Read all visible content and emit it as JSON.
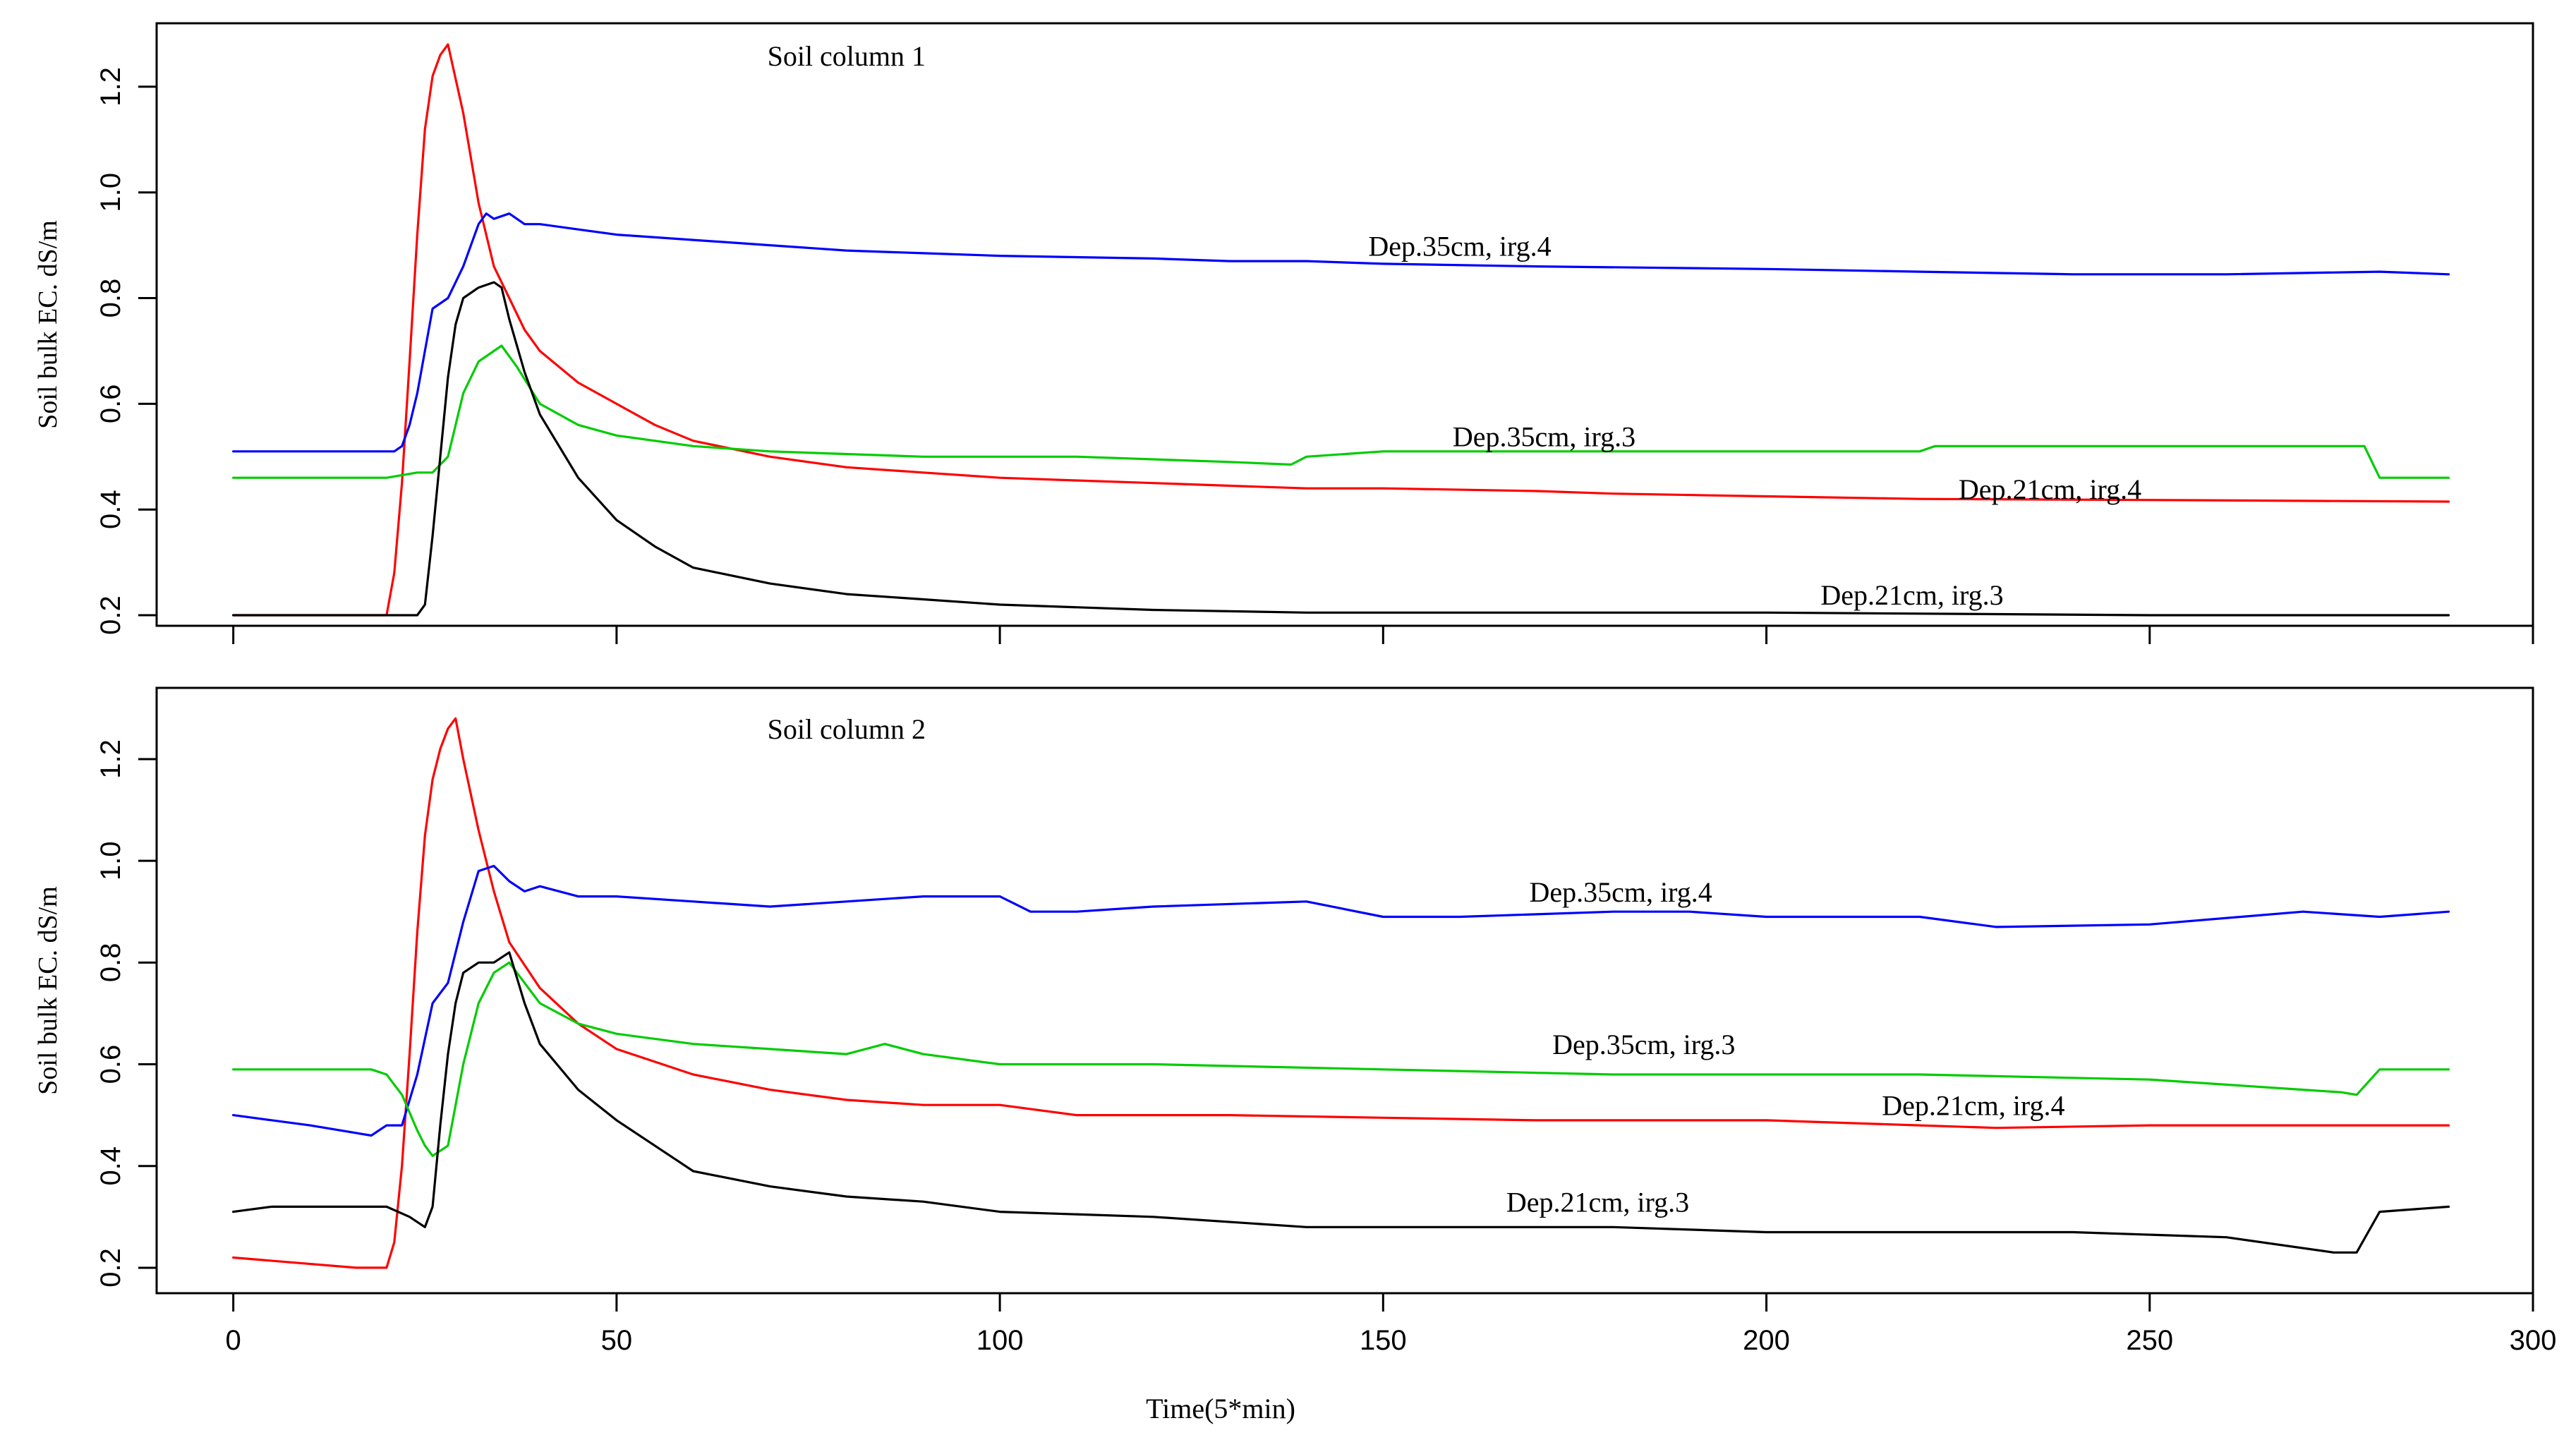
{
  "chart_data": [
    {
      "type": "line",
      "title": "Soil column 1",
      "xlabel": "Time(5*min)",
      "ylabel": "Soil bulk EC. dS/m",
      "xlim": [
        -10,
        300
      ],
      "ylim": [
        0.18,
        1.32
      ],
      "xticks": [
        0,
        50,
        100,
        150,
        200,
        250,
        300
      ],
      "yticks": [
        0.2,
        0.4,
        0.6,
        0.8,
        1.0,
        1.2
      ],
      "ytick_labels": [
        "0.2",
        "0.4",
        "0.6",
        "0.8",
        "1.0",
        "1.2"
      ],
      "series": [
        {
          "name": "Dep.21cm, irg.4",
          "color": "#ff0000",
          "x": [
            0,
            20,
            21,
            22,
            23,
            24,
            25,
            26,
            27,
            28,
            30,
            32,
            34,
            36,
            38,
            40,
            45,
            50,
            55,
            60,
            70,
            80,
            90,
            100,
            110,
            120,
            130,
            140,
            150,
            170,
            180,
            200,
            220,
            250,
            289
          ],
          "y": [
            0.2,
            0.2,
            0.28,
            0.45,
            0.68,
            0.92,
            1.12,
            1.22,
            1.26,
            1.28,
            1.15,
            0.98,
            0.86,
            0.8,
            0.74,
            0.7,
            0.64,
            0.6,
            0.56,
            0.53,
            0.5,
            0.48,
            0.47,
            0.46,
            0.455,
            0.45,
            0.445,
            0.44,
            0.44,
            0.435,
            0.43,
            0.425,
            0.42,
            0.418,
            0.415
          ]
        },
        {
          "name": "Dep.35cm, irg.4",
          "color": "#0000ff",
          "x": [
            0,
            20,
            21,
            22,
            23,
            24,
            26,
            28,
            30,
            32,
            33,
            34,
            36,
            38,
            40,
            45,
            50,
            60,
            70,
            80,
            90,
            100,
            120,
            130,
            140,
            150,
            170,
            200,
            220,
            240,
            260,
            280,
            289
          ],
          "y": [
            0.51,
            0.51,
            0.51,
            0.52,
            0.56,
            0.62,
            0.78,
            0.8,
            0.86,
            0.94,
            0.96,
            0.95,
            0.96,
            0.94,
            0.94,
            0.93,
            0.92,
            0.91,
            0.9,
            0.89,
            0.885,
            0.88,
            0.875,
            0.87,
            0.87,
            0.865,
            0.86,
            0.855,
            0.85,
            0.845,
            0.845,
            0.85,
            0.845
          ]
        },
        {
          "name": "Dep.35cm, irg.3",
          "color": "#00cc00",
          "x": [
            0,
            20,
            24,
            26,
            28,
            30,
            32,
            34,
            35,
            37,
            40,
            45,
            50,
            60,
            70,
            90,
            100,
            110,
            130,
            138,
            140,
            150,
            170,
            190,
            200,
            220,
            222,
            240,
            250,
            270,
            278,
            280,
            289
          ],
          "y": [
            0.46,
            0.46,
            0.47,
            0.47,
            0.5,
            0.62,
            0.68,
            0.7,
            0.71,
            0.67,
            0.6,
            0.56,
            0.54,
            0.52,
            0.51,
            0.5,
            0.5,
            0.5,
            0.49,
            0.485,
            0.5,
            0.51,
            0.51,
            0.51,
            0.51,
            0.51,
            0.52,
            0.52,
            0.52,
            0.52,
            0.52,
            0.46,
            0.46
          ]
        },
        {
          "name": "Dep.21cm, irg.3",
          "color": "#000000",
          "x": [
            0,
            24,
            25,
            26,
            27,
            28,
            29,
            30,
            32,
            34,
            35,
            36,
            38,
            40,
            45,
            50,
            55,
            60,
            70,
            80,
            90,
            100,
            120,
            140,
            160,
            200,
            250,
            289
          ],
          "y": [
            0.2,
            0.2,
            0.22,
            0.35,
            0.5,
            0.65,
            0.75,
            0.8,
            0.82,
            0.83,
            0.82,
            0.76,
            0.66,
            0.58,
            0.46,
            0.38,
            0.33,
            0.29,
            0.26,
            0.24,
            0.23,
            0.22,
            0.21,
            0.205,
            0.205,
            0.205,
            0.2,
            0.2
          ]
        }
      ],
      "annotations": [
        {
          "text": "Soil column 1",
          "x": 80,
          "y": 1.24
        },
        {
          "text": "Dep.35cm, irg.4",
          "x": 160,
          "y": 0.88
        },
        {
          "text": "Dep.35cm, irg.3",
          "x": 171,
          "y": 0.52
        },
        {
          "text": "Dep.21cm, irg.4",
          "x": 237,
          "y": 0.42
        },
        {
          "text": "Dep.21cm, irg.3",
          "x": 219,
          "y": 0.22
        }
      ]
    },
    {
      "type": "line",
      "title": "Soil column 2",
      "xlabel": "Time(5*min)",
      "ylabel": "Soil bulk EC. dS/m",
      "xlim": [
        -10,
        300
      ],
      "ylim": [
        0.15,
        1.34
      ],
      "xticks": [
        0,
        50,
        100,
        150,
        200,
        250,
        300
      ],
      "xtick_labels": [
        "0",
        "50",
        "100",
        "150",
        "200",
        "250",
        "300"
      ],
      "yticks": [
        0.2,
        0.4,
        0.6,
        0.8,
        1.0,
        1.2
      ],
      "ytick_labels": [
        "0.2",
        "0.4",
        "0.6",
        "0.8",
        "1.0",
        "1.2"
      ],
      "series": [
        {
          "name": "Dep.21cm, irg.4",
          "color": "#ff0000",
          "x": [
            0,
            8,
            16,
            20,
            21,
            22,
            23,
            24,
            25,
            26,
            27,
            28,
            29,
            30,
            32,
            34,
            36,
            40,
            45,
            50,
            60,
            70,
            80,
            90,
            100,
            110,
            130,
            150,
            170,
            190,
            200,
            220,
            230,
            250,
            270,
            289
          ],
          "y": [
            0.22,
            0.21,
            0.2,
            0.2,
            0.25,
            0.4,
            0.62,
            0.86,
            1.05,
            1.16,
            1.22,
            1.26,
            1.28,
            1.2,
            1.06,
            0.94,
            0.84,
            0.75,
            0.68,
            0.63,
            0.58,
            0.55,
            0.53,
            0.52,
            0.52,
            0.5,
            0.5,
            0.495,
            0.49,
            0.49,
            0.49,
            0.48,
            0.475,
            0.48,
            0.48,
            0.48
          ]
        },
        {
          "name": "Dep.35cm, irg.4",
          "color": "#0000ff",
          "x": [
            0,
            10,
            18,
            20,
            22,
            24,
            26,
            28,
            30,
            32,
            34,
            36,
            38,
            40,
            45,
            50,
            60,
            70,
            80,
            90,
            100,
            104,
            110,
            120,
            140,
            150,
            160,
            180,
            190,
            200,
            220,
            230,
            250,
            270,
            280,
            289
          ],
          "y": [
            0.5,
            0.48,
            0.46,
            0.48,
            0.48,
            0.58,
            0.72,
            0.76,
            0.88,
            0.98,
            0.99,
            0.96,
            0.94,
            0.95,
            0.93,
            0.93,
            0.92,
            0.91,
            0.92,
            0.93,
            0.93,
            0.9,
            0.9,
            0.91,
            0.92,
            0.89,
            0.89,
            0.9,
            0.9,
            0.89,
            0.89,
            0.87,
            0.875,
            0.9,
            0.89,
            0.9
          ]
        },
        {
          "name": "Dep.35cm, irg.3",
          "color": "#00cc00",
          "x": [
            0,
            18,
            20,
            22,
            24,
            25,
            26,
            28,
            30,
            32,
            34,
            36,
            38,
            40,
            45,
            50,
            60,
            70,
            80,
            85,
            90,
            100,
            120,
            150,
            180,
            200,
            220,
            250,
            270,
            275,
            277,
            280,
            289
          ],
          "y": [
            0.59,
            0.59,
            0.58,
            0.54,
            0.47,
            0.44,
            0.42,
            0.44,
            0.6,
            0.72,
            0.78,
            0.8,
            0.76,
            0.72,
            0.68,
            0.66,
            0.64,
            0.63,
            0.62,
            0.64,
            0.62,
            0.6,
            0.6,
            0.59,
            0.58,
            0.58,
            0.58,
            0.57,
            0.55,
            0.545,
            0.54,
            0.59,
            0.59
          ]
        },
        {
          "name": "Dep.21cm, irg.3",
          "color": "#000000",
          "x": [
            0,
            5,
            20,
            23,
            25,
            26,
            27,
            28,
            29,
            30,
            32,
            34,
            36,
            38,
            40,
            45,
            50,
            55,
            60,
            70,
            80,
            90,
            100,
            120,
            140,
            160,
            180,
            200,
            240,
            260,
            274,
            277,
            280,
            289
          ],
          "y": [
            0.31,
            0.32,
            0.32,
            0.3,
            0.28,
            0.32,
            0.48,
            0.62,
            0.72,
            0.78,
            0.8,
            0.8,
            0.82,
            0.72,
            0.64,
            0.55,
            0.49,
            0.44,
            0.39,
            0.36,
            0.34,
            0.33,
            0.31,
            0.3,
            0.28,
            0.28,
            0.28,
            0.27,
            0.27,
            0.26,
            0.23,
            0.23,
            0.31,
            0.32
          ]
        }
      ],
      "annotations": [
        {
          "text": "Soil column 2",
          "x": 80,
          "y": 1.24
        },
        {
          "text": "Dep.35cm, irg.4",
          "x": 181,
          "y": 0.92
        },
        {
          "text": "Dep.35cm, irg.3",
          "x": 184,
          "y": 0.62
        },
        {
          "text": "Dep.21cm, irg.4",
          "x": 227,
          "y": 0.5
        },
        {
          "text": "Dep.21cm, irg.3",
          "x": 178,
          "y": 0.31
        }
      ]
    }
  ]
}
